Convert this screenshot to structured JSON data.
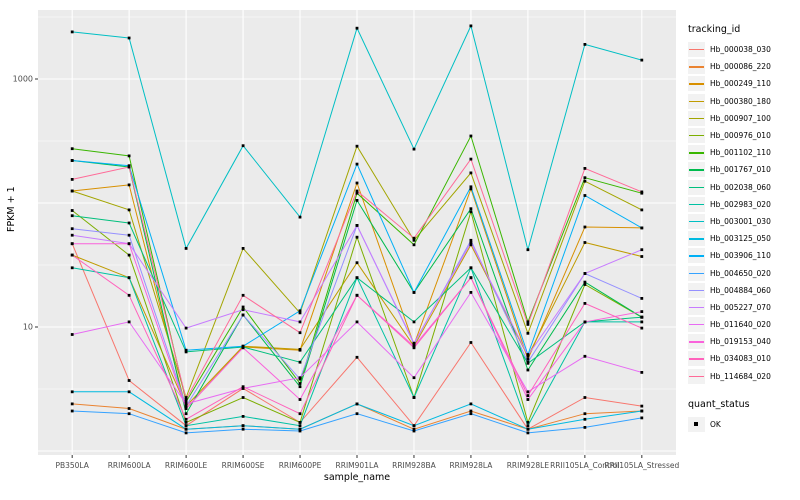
{
  "style": {
    "panel_bg": "#EBEBEB",
    "grid_color": "#FFFFFF",
    "axis_text_color": "#4D4D4D",
    "tick_color": "#333333",
    "point_color": "#000000",
    "legend_key_bg": "#F2F2F2"
  },
  "axes": {
    "y_title": "FPKM + 1",
    "x_title": "sample_name",
    "y_ticks": [
      {
        "label": "1000",
        "value": 1000
      },
      {
        "label": "10",
        "value": 10
      }
    ]
  },
  "legend": {
    "title": "tracking_id",
    "position": "right"
  },
  "point_legend": {
    "title": "quant_status",
    "label": "OK",
    "marker": "black-square"
  },
  "chart_data": {
    "type": "line",
    "title": "",
    "xlabel": "sample_name",
    "ylabel": "FPKM + 1",
    "y_scale": "log10",
    "ylim": [
      0.93,
      3600
    ],
    "grid": true,
    "major_grid_values": [
      1,
      10,
      100,
      1000
    ],
    "minor_grid_values": [
      3.162,
      31.62,
      316.2,
      3162
    ],
    "legend_position": "right",
    "point_marker": "filled-black-square",
    "categories": [
      "PB350LA",
      "RRIM600LA",
      "RRIM600LE",
      "RRIM600SE",
      "RRIM600PE",
      "RRIM901LA",
      "RRIM928BA",
      "RRIM928LA",
      "RRIM928LE",
      "RRII105LA_Control",
      "RRII105LA_Stressed"
    ],
    "series": [
      {
        "name": "Hb_000038_030",
        "color": "#F8766D",
        "values": [
          47,
          3.7,
          1.6,
          3.2,
          1.7,
          5.7,
          1.6,
          7.5,
          1.5,
          2.7,
          2.3
        ]
      },
      {
        "name": "Hb_000086_220",
        "color": "#EA8331",
        "values": [
          2.4,
          2.2,
          1.5,
          1.6,
          1.5,
          2.4,
          1.5,
          2.1,
          1.5,
          2.0,
          2.1
        ]
      },
      {
        "name": "Hb_000249_110",
        "color": "#D89000",
        "values": [
          125,
          140,
          2.2,
          6.9,
          6.5,
          145,
          7.2,
          130,
          5.5,
          64,
          63
        ]
      },
      {
        "name": "Hb_000380_180",
        "color": "#C09B00",
        "values": [
          38,
          25,
          2.3,
          7.0,
          6.6,
          33,
          7.0,
          46,
          5.8,
          48,
          37
        ]
      },
      {
        "name": "Hb_000907_100",
        "color": "#A3A500",
        "values": [
          125,
          88,
          2.7,
          43,
          13,
          287,
          50,
          175,
          8.9,
          150,
          88
        ]
      },
      {
        "name": "Hb_000976_010",
        "color": "#7CAE00",
        "values": [
          87,
          38,
          1.7,
          2.7,
          1.7,
          53,
          2.7,
          85,
          1.7,
          22,
          12
        ]
      },
      {
        "name": "Hb_001102_110",
        "color": "#39B600",
        "values": [
          274,
          240,
          2.5,
          14.5,
          3.5,
          120,
          46,
          347,
          11,
          160,
          120
        ]
      },
      {
        "name": "Hb_001767_010",
        "color": "#00BB4E",
        "values": [
          220,
          195,
          2.0,
          12.5,
          3.3,
          105,
          19,
          90,
          4.5,
          23,
          12
        ]
      },
      {
        "name": "Hb_002038_060",
        "color": "#00BF7D",
        "values": [
          79,
          69,
          6.3,
          6.9,
          5.2,
          25,
          11,
          30,
          5.1,
          11,
          12
        ]
      },
      {
        "name": "Hb_002983_020",
        "color": "#00C1A3",
        "values": [
          30,
          25,
          1.6,
          1.9,
          1.6,
          25,
          2.7,
          30,
          1.6,
          11,
          11
        ]
      },
      {
        "name": "Hb_003001_030",
        "color": "#00BFC4",
        "values": [
          2400,
          2140,
          43,
          290,
          77,
          2570,
          272,
          2680,
          42,
          1900,
          1420
        ]
      },
      {
        "name": "Hb_003125_050",
        "color": "#00BAE0",
        "values": [
          3.0,
          3.0,
          1.5,
          1.6,
          1.5,
          2.4,
          1.6,
          2.4,
          1.5,
          1.8,
          2.1
        ]
      },
      {
        "name": "Hb_003906_110",
        "color": "#00B0F6",
        "values": [
          220,
          200,
          6.5,
          7.0,
          13.5,
          206,
          19,
          135,
          6.0,
          115,
          63
        ]
      },
      {
        "name": "Hb_004650_020",
        "color": "#35A2FF",
        "values": [
          2.1,
          2.0,
          1.4,
          1.5,
          1.45,
          2.0,
          1.45,
          2.0,
          1.4,
          1.55,
          1.85
        ]
      },
      {
        "name": "Hb_004884_060",
        "color": "#9590FF",
        "values": [
          62,
          55,
          2.3,
          12.5,
          3.8,
          66,
          7.3,
          50,
          5.2,
          27,
          17
        ]
      },
      {
        "name": "Hb_005227_070",
        "color": "#C77CFF",
        "values": [
          55,
          47,
          9.8,
          13.8,
          11,
          66,
          7.4,
          48,
          5.9,
          27,
          42
        ]
      },
      {
        "name": "Hb_011640_020",
        "color": "#E76BF3",
        "values": [
          8.7,
          11,
          2.4,
          3.2,
          3.9,
          11,
          3.9,
          19,
          3.0,
          5.8,
          4.3
        ]
      },
      {
        "name": "Hb_019153_040",
        "color": "#FA62DB",
        "values": [
          47,
          47,
          2.2,
          6.8,
          2.6,
          18,
          7.0,
          25,
          2.6,
          11,
          13.3
        ]
      },
      {
        "name": "Hb_034083_010",
        "color": "#FF62BC",
        "values": [
          38,
          18,
          1.8,
          3.3,
          2.0,
          18,
          6.8,
          25,
          2.8,
          15.5,
          9.8
        ]
      },
      {
        "name": "Hb_114684_020",
        "color": "#FF6A98",
        "values": [
          155,
          195,
          2.6,
          18,
          9.0,
          125,
          52,
          226,
          10.5,
          190,
          123
        ]
      }
    ]
  }
}
